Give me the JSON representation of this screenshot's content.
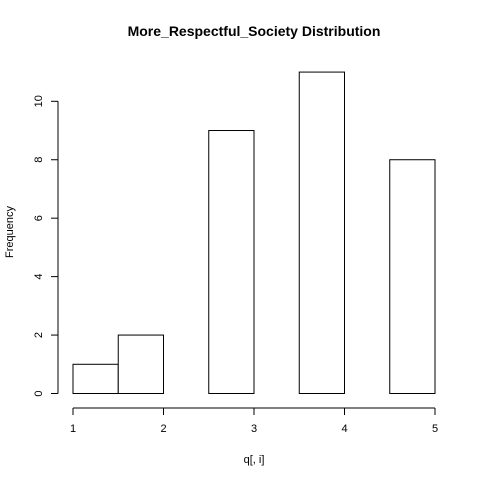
{
  "chart_data": {
    "type": "bar",
    "title": "More_Respectful_Society Distribution",
    "xlabel": "q[, i]",
    "ylabel": "Frequency",
    "bins": [
      {
        "start": 1.0,
        "end": 1.5,
        "count": 1
      },
      {
        "start": 1.5,
        "end": 2.0,
        "count": 2
      },
      {
        "start": 2.0,
        "end": 2.5,
        "count": 0
      },
      {
        "start": 2.5,
        "end": 3.0,
        "count": 9
      },
      {
        "start": 3.0,
        "end": 3.5,
        "count": 0
      },
      {
        "start": 3.5,
        "end": 4.0,
        "count": 11
      },
      {
        "start": 4.0,
        "end": 4.5,
        "count": 0
      },
      {
        "start": 4.5,
        "end": 5.0,
        "count": 8
      }
    ],
    "xlim": [
      1,
      5
    ],
    "ylim": [
      0,
      11
    ],
    "xticks": [
      "1",
      "2",
      "3",
      "4",
      "5"
    ],
    "yticks": [
      "0",
      "2",
      "4",
      "6",
      "8",
      "10"
    ],
    "grid": false,
    "colors": {
      "bar_fill": "#ffffff",
      "bar_stroke": "#000000",
      "axis": "#000000"
    }
  }
}
